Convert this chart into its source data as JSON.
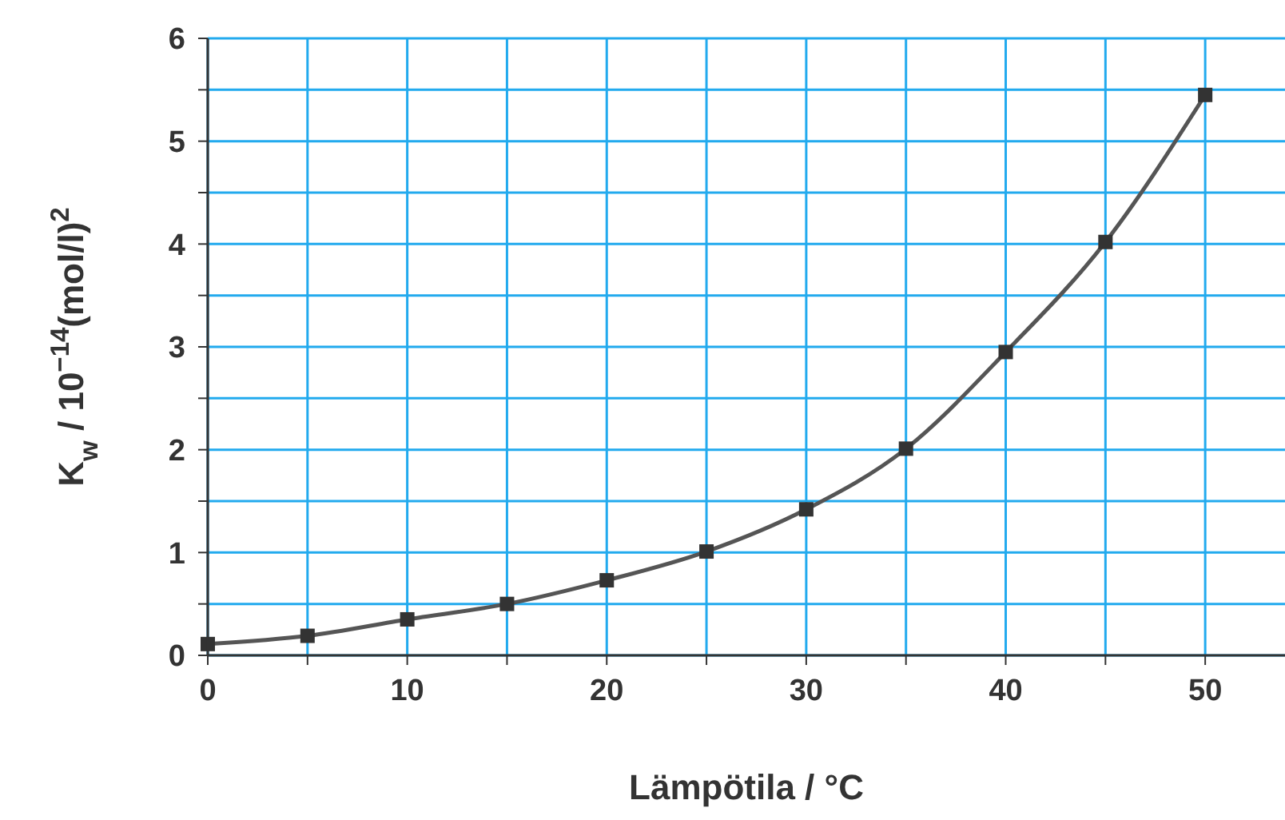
{
  "chart_data": {
    "type": "line",
    "xlabel": "Lämpötila / °C",
    "ylabel": "K$_{w}$ / 10$^{−14}$(mol/l)$^{2}$",
    "x": [
      0,
      5,
      10,
      15,
      20,
      25,
      30,
      35,
      40,
      45,
      50
    ],
    "series": [
      {
        "color": "#555555",
        "values": [
          0.11,
          0.19,
          0.35,
          0.5,
          0.73,
          1.01,
          1.42,
          2.01,
          2.95,
          4.02,
          5.45
        ]
      }
    ],
    "xlim": [
      0,
      54
    ],
    "ylim": [
      0,
      6
    ],
    "xticks": [
      0,
      {
        "value": 5,
        "label": null
      },
      10,
      {
        "value": 15,
        "label": null
      },
      20,
      {
        "value": 25,
        "label": null
      },
      30,
      {
        "value": 35,
        "label": null
      },
      40,
      {
        "value": 45,
        "label": null
      },
      50
    ],
    "yticks": [
      0,
      {
        "value": 0.5,
        "label": null
      },
      1,
      {
        "value": 1.5,
        "label": null
      },
      2,
      {
        "value": 2.5,
        "label": null
      },
      3,
      {
        "value": 3.5,
        "label": null
      },
      4,
      {
        "value": 4.5,
        "label": null
      },
      5,
      {
        "value": 5.5,
        "label": null
      },
      6
    ],
    "grid": true,
    "marker": "square",
    "line_style": "solid"
  }
}
